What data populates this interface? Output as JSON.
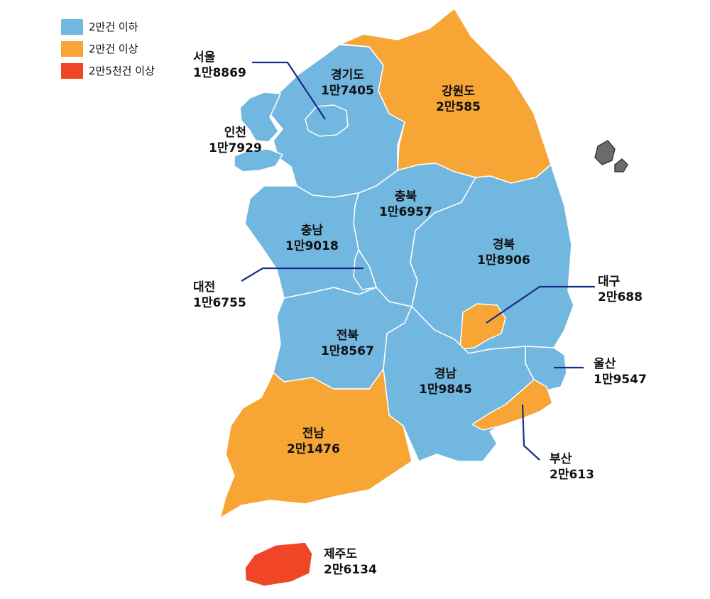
{
  "colors": {
    "below_20k": "#72b7e0",
    "above_20k": "#f7a535",
    "above_25k": "#f04526",
    "leader": "#1a2a8a",
    "border": "#ffffff",
    "island": "#6b6b6b"
  },
  "legend": [
    {
      "label": "2만건 이하",
      "color": "#72b7e0"
    },
    {
      "label": "2만건 이상",
      "color": "#f7a535"
    },
    {
      "label": "2만5천건 이상",
      "color": "#f04526"
    }
  ],
  "regions": {
    "seoul": {
      "name": "서울",
      "value": "1만8869"
    },
    "incheon": {
      "name": "인천",
      "value": "1만7929"
    },
    "gyeonggi": {
      "name": "경기도",
      "value": "1만7405"
    },
    "gangwon": {
      "name": "강원도",
      "value": "2만585"
    },
    "chungbuk": {
      "name": "충북",
      "value": "1만6957"
    },
    "chungnam": {
      "name": "충남",
      "value": "1만9018"
    },
    "daejeon": {
      "name": "대전",
      "value": "1만6755"
    },
    "gyeongbuk": {
      "name": "경북",
      "value": "1만8906"
    },
    "daegu": {
      "name": "대구",
      "value": "2만688"
    },
    "jeonbuk": {
      "name": "전북",
      "value": "1만8567"
    },
    "gyeongnam": {
      "name": "경남",
      "value": "1만9845"
    },
    "ulsan": {
      "name": "울산",
      "value": "1만9547"
    },
    "busan": {
      "name": "부산",
      "value": "2만613"
    },
    "jeonnam": {
      "name": "전남",
      "value": "2만1476"
    },
    "jeju": {
      "name": "제주도",
      "value": "2만6134"
    }
  }
}
